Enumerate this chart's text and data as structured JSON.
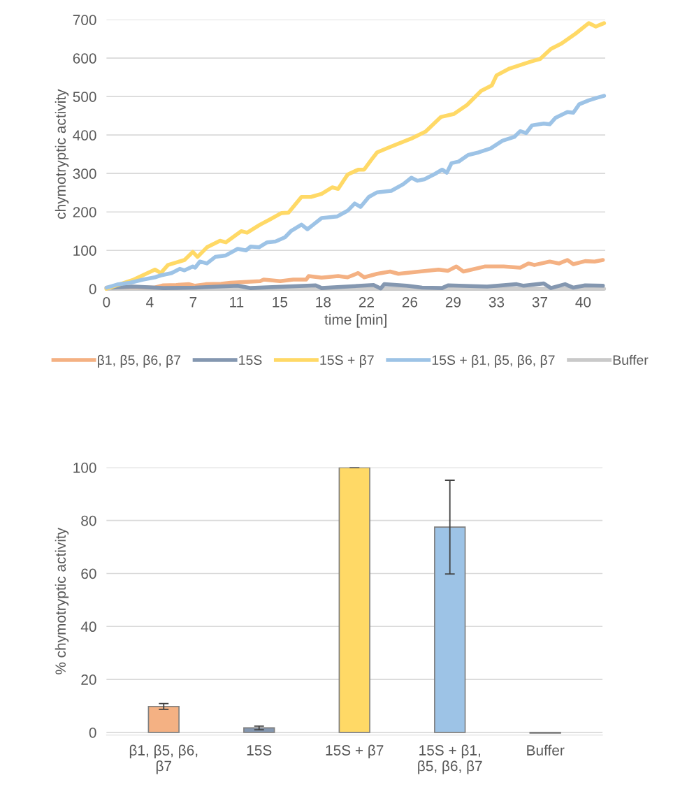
{
  "chart_data": [
    {
      "type": "line",
      "xlabel": "time [min]",
      "ylabel": "chymotryptic activity",
      "xlim": [
        0,
        42.2
      ],
      "ylim": [
        0,
        700
      ],
      "xticks": [
        0,
        {
          "value": 3.667,
          "label": "4"
        },
        {
          "value": 7.333,
          "label": "7"
        },
        11,
        {
          "value": 14.667,
          "label": "15"
        },
        {
          "value": 18.333,
          "label": "18"
        },
        22,
        {
          "value": 25.667,
          "label": "26"
        },
        {
          "value": 29.333,
          "label": "29"
        },
        33,
        {
          "value": 36.667,
          "label": "37"
        },
        {
          "value": 40.333,
          "label": "40"
        }
      ],
      "yticks": [
        0,
        100,
        200,
        300,
        400,
        500,
        600,
        700
      ],
      "grid": "y",
      "legend": "bottom",
      "marker": "none",
      "line_style": "solid",
      "series": [
        {
          "name": "Buffer",
          "color": "#c9c9c9",
          "x": [
            0,
            42.1
          ],
          "values": [
            0,
            0
          ]
        },
        {
          "name": "β1, β5, β6, β7",
          "color": "#f4b183",
          "x": [
            0,
            2.0,
            4.0,
            4.8,
            5.9,
            7.0,
            7.5,
            8.4,
            9.7,
            10.5,
            11.9,
            13.0,
            13.3,
            14.7,
            15.8,
            16.9,
            17.1,
            18.2,
            19.6,
            20.4,
            21.3,
            21.8,
            22.9,
            24.0,
            24.7,
            26.2,
            28.1,
            28.9,
            29.6,
            30.2,
            32.0,
            33.6,
            35.0,
            35.7,
            36.2,
            37.5,
            38.3,
            39.0,
            39.5,
            40.5,
            41.3,
            42.0
          ],
          "values": [
            3,
            5,
            3,
            9,
            10,
            12,
            8,
            12,
            13,
            16,
            18,
            20,
            24,
            20,
            24,
            24,
            33,
            29,
            33,
            30,
            41,
            30,
            39,
            45,
            39,
            44,
            50,
            47,
            58,
            45,
            58,
            58,
            55,
            66,
            62,
            71,
            66,
            75,
            64,
            72,
            71,
            75
          ]
        },
        {
          "name": "15S",
          "color": "#8497b0",
          "x": [
            0.5,
            2.3,
            4.8,
            7.5,
            11.1,
            12.2,
            17.7,
            18.2,
            22.6,
            23.2,
            23.5,
            25.4,
            26.7,
            28.4,
            28.9,
            32.2,
            34.7,
            35.3,
            37.0,
            37.6,
            38.8,
            39.5,
            40.5,
            42.0
          ],
          "values": [
            3,
            6,
            2,
            3,
            8,
            2,
            9,
            2,
            10,
            1,
            12,
            8,
            3,
            2,
            9,
            6,
            12,
            8,
            14,
            2,
            12,
            3,
            9,
            8
          ]
        },
        {
          "name": "15S + β7",
          "color": "#ffd966",
          "x": [
            0,
            2.3,
            4.1,
            4.6,
            5.2,
            6.6,
            7.3,
            7.7,
            8.5,
            9.6,
            10.1,
            11.4,
            11.9,
            13.0,
            13.8,
            14.8,
            15.4,
            16.5,
            17.3,
            18.2,
            19.1,
            19.6,
            20.4,
            21.3,
            21.8,
            22.4,
            22.9,
            24.0,
            25.8,
            27.0,
            28.3,
            29.4,
            30.5,
            31.7,
            32.6,
            33.0,
            34.1,
            35.9,
            36.7,
            37.6,
            38.5,
            39.7,
            40.8,
            41.4,
            42.1
          ],
          "values": [
            0,
            24,
            50,
            41,
            62,
            75,
            96,
            83,
            108,
            125,
            121,
            150,
            146,
            167,
            180,
            197,
            198,
            239,
            239,
            247,
            264,
            260,
            297,
            310,
            310,
            335,
            355,
            369,
            391,
            409,
            447,
            455,
            478,
            515,
            529,
            555,
            573,
            591,
            598,
            624,
            638,
            664,
            691,
            682,
            691
          ]
        },
        {
          "name": "15S + β1, β5, β6, β7",
          "color": "#9dc3e6",
          "x": [
            0,
            1.0,
            2.0,
            3.1,
            4.1,
            4.6,
            5.5,
            6.2,
            6.6,
            7.3,
            7.5,
            7.9,
            8.5,
            9.2,
            10.1,
            11.1,
            11.8,
            12.2,
            12.9,
            13.6,
            14.3,
            15.1,
            15.6,
            16.5,
            17.0,
            17.5,
            18.2,
            19.5,
            20.4,
            21.0,
            21.5,
            22.2,
            22.9,
            24.1,
            25.1,
            25.8,
            26.3,
            26.9,
            27.8,
            28.4,
            28.8,
            29.2,
            29.8,
            30.6,
            31.5,
            32.5,
            33.5,
            34.5,
            35.0,
            35.5,
            36.0,
            37.0,
            37.5,
            38.0,
            39.0,
            39.5,
            40.0,
            40.8,
            41.5,
            42.1
          ],
          "values": [
            3,
            12,
            16,
            24,
            30,
            35,
            41,
            52,
            48,
            58,
            55,
            71,
            66,
            83,
            87,
            104,
            100,
            110,
            108,
            121,
            123,
            134,
            150,
            167,
            155,
            167,
            184,
            188,
            203,
            222,
            213,
            239,
            251,
            255,
            272,
            289,
            281,
            285,
            299,
            310,
            302,
            327,
            331,
            348,
            355,
            365,
            385,
            395,
            410,
            405,
            425,
            430,
            428,
            445,
            460,
            458,
            480,
            490,
            497,
            502
          ]
        }
      ]
    },
    {
      "type": "bar",
      "ylabel": "% chymotryptic activity",
      "categories": [
        "β1, β5, β6, β7",
        "15S",
        "15S + β7",
        "15S + β1, β5, β6, β7",
        "Buffer"
      ],
      "values": [
        9.8,
        1.7,
        100,
        77.5,
        -0.3
      ],
      "errors": [
        1.1,
        0.7,
        0,
        17.7,
        null
      ],
      "colors": [
        "#f4b183",
        "#8497b0",
        "#ffd966",
        "#9dc3e6",
        "#d0d0d0"
      ],
      "ylim": [
        -1,
        100
      ],
      "yticks": [
        0,
        20,
        40,
        60,
        80,
        100
      ],
      "grid": "y"
    }
  ]
}
